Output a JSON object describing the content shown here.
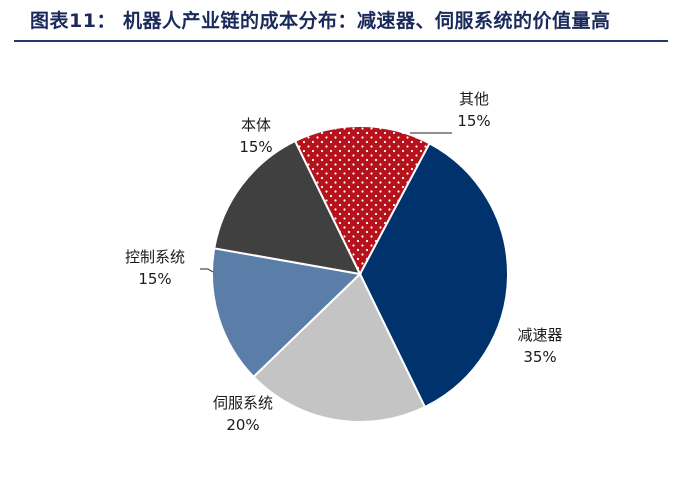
{
  "title": "图表11：  机器人产业链的成本分布：减速器、伺服系统的价值量高",
  "chart_data": {
    "type": "pie",
    "slices": [
      {
        "name": "减速器",
        "value": 35,
        "label": "35%",
        "color": "#00336e",
        "pattern": "solid"
      },
      {
        "name": "伺服系统",
        "value": 20,
        "label": "20%",
        "color": "#c4c4c4",
        "pattern": "solid"
      },
      {
        "name": "控制系统",
        "value": 15,
        "label": "15%",
        "color": "#5b7ea8",
        "pattern": "solid"
      },
      {
        "name": "本体",
        "value": 15,
        "label": "15%",
        "color": "#404040",
        "pattern": "solid"
      },
      {
        "name": "其他",
        "value": 15,
        "label": "15%",
        "color": "#b5121b",
        "pattern": "dots"
      }
    ]
  }
}
